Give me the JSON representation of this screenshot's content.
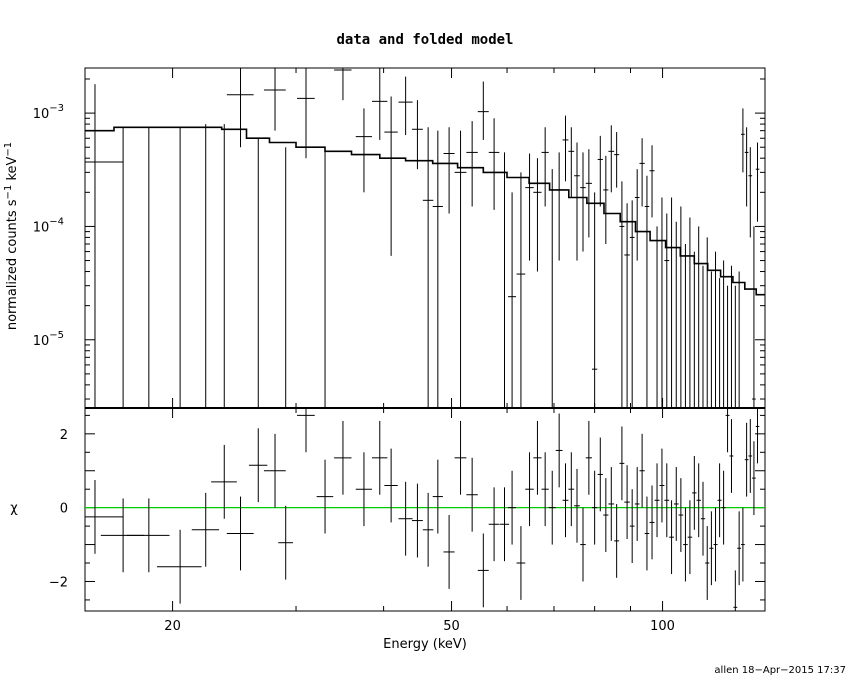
{
  "chart_data": [
    {
      "type": "scatter",
      "panel": "top",
      "title": "data and folded model",
      "xlabel": "",
      "ylabel_parts": [
        "normalized counts s",
        "−1",
        " keV",
        "−1"
      ],
      "xscale": "log",
      "yscale": "log",
      "xlim": [
        15,
        140
      ],
      "ylim": [
        2.5e-06,
        0.0025
      ],
      "yticks": [
        {
          "value": 0.001,
          "base": "10",
          "exp": "−3"
        },
        {
          "value": 0.0001,
          "base": "10",
          "exp": "−4"
        },
        {
          "value": 1e-05,
          "base": "10",
          "exp": "−5"
        }
      ],
      "series": [
        {
          "role": "data",
          "color": "#000000",
          "x": [
            15.5,
            17.0,
            18.5,
            20.5,
            22.3,
            23.7,
            25.0,
            26.5,
            28.0,
            29.0,
            31.0,
            33.0,
            35.0,
            37.5,
            39.5,
            41.0,
            43.0,
            44.7,
            46.3,
            47.8,
            49.6,
            51.5,
            53.5,
            55.5,
            57.5,
            59.5,
            61.0,
            62.8,
            64.6,
            66.3,
            68.0,
            69.6,
            71.2,
            72.7,
            74.1,
            75.5,
            77.0,
            78.5,
            80.0,
            81.5,
            83.0,
            84.5,
            86.0,
            87.5,
            89.0,
            90.5,
            92.0,
            93.5,
            95.0,
            96.6,
            98.2,
            99.8,
            101.4,
            103.0,
            104.6,
            106.2,
            107.8,
            109.4,
            111.0,
            112.6,
            114.2,
            115.8,
            117.4,
            119.0,
            120.6,
            122.2,
            123.8,
            125.4,
            127.0,
            128.6,
            130.2,
            131.8,
            133.4,
            135.0,
            136.6
          ],
          "y": [
            0.00037,
            2.5e-06,
            2.5e-06,
            2.5e-06,
            2.5e-06,
            2.5e-06,
            0.00145,
            2.5e-06,
            0.0016,
            2.5e-06,
            0.00135,
            2.5e-06,
            0.0024,
            0.00062,
            0.00127,
            0.00068,
            0.00125,
            0.00072,
            0.00017,
            0.00015,
            0.00044,
            0.0003,
            0.00045,
            0.00103,
            0.00045,
            2.5e-06,
            2.4e-05,
            3.8e-05,
            0.00022,
            0.0002,
            0.00045,
            2.5e-06,
            0.00021,
            0.00058,
            0.00046,
            0.00028,
            0.00022,
            0.00024,
            5.5e-06,
            0.00039,
            0.00021,
            0.00046,
            0.00043,
            0.0001,
            5.6e-05,
            8e-05,
            0.00018,
            0.00036,
            0.00015,
            0.00031,
            2.5e-06,
            2.5e-06,
            5e-05,
            2.5e-06,
            2.5e-06,
            2.5e-06,
            2.5e-06,
            2.5e-06,
            2.5e-06,
            2.5e-06,
            2.5e-06,
            2.5e-06,
            2.5e-06,
            2.5e-06,
            2.5e-06,
            2.5e-06,
            2.5e-06,
            2.5e-06,
            2.5e-06,
            2.5e-06,
            0.00065,
            0.00045,
            0.00028,
            3e-06,
            0.00032
          ],
          "xerr": [
            1.5,
            1.2,
            1.3,
            1.5,
            1.0,
            1.0,
            1.1,
            0.8,
            1.0,
            0.7,
            0.9,
            0.9,
            1.0,
            1.0,
            1.0,
            0.9,
            1.0,
            0.8,
            0.8,
            0.8,
            0.9,
            1.0,
            1.0,
            1.0,
            1.0,
            0.9,
            0.8,
            0.9,
            0.9,
            0.9,
            0.8,
            0.8,
            0.8,
            0.7,
            0.7,
            0.7,
            0.7,
            0.8,
            0.7,
            0.7,
            0.7,
            0.8,
            0.7,
            0.7,
            0.8,
            0.7,
            0.7,
            0.8,
            0.7,
            0.8,
            0.8,
            0.8,
            0.8,
            0.8,
            0.8,
            0.8,
            0.8,
            0.8,
            0.8,
            0.8,
            0.8,
            0.8,
            0.8,
            0.8,
            0.8,
            0.8,
            0.8,
            0.8,
            0.8,
            0.8,
            0.8,
            0.8,
            0.8,
            0.8,
            0.8
          ],
          "ylo": [
            2.5e-06,
            2.5e-06,
            2.5e-06,
            2.5e-06,
            2.5e-06,
            2.5e-06,
            0.0005,
            2.5e-06,
            0.0007,
            2.5e-06,
            0.0004,
            2.5e-06,
            0.0013,
            0.0002,
            0.00058,
            5.5e-05,
            0.00064,
            0.00032,
            2.5e-06,
            2.5e-06,
            0.00013,
            2.5e-06,
            0.00015,
            0.00058,
            0.00014,
            2.5e-06,
            2.5e-06,
            2.5e-06,
            5e-05,
            4e-05,
            0.00015,
            2.5e-06,
            5e-05,
            0.00025,
            0.00018,
            5e-05,
            6e-05,
            8e-05,
            2.5e-06,
            0.00015,
            7e-05,
            0.0002,
            0.00022,
            2.5e-06,
            2.5e-06,
            2.5e-06,
            5e-05,
            0.00015,
            2.5e-06,
            0.00012,
            2.5e-06,
            2.5e-06,
            2.5e-06,
            2.5e-06,
            2.5e-06,
            2.5e-06,
            2.5e-06,
            2.5e-06,
            2.5e-06,
            2.5e-06,
            2.5e-06,
            2.5e-06,
            2.5e-06,
            2.5e-06,
            2.5e-06,
            2.5e-06,
            2.5e-06,
            2.5e-06,
            2.5e-06,
            2.5e-06,
            0.0003,
            0.00015,
            8e-05,
            2.5e-06,
            0.00011
          ],
          "yhi": [
            0.0018,
            0.00075,
            0.00075,
            0.00075,
            0.0008,
            0.0008,
            0.0025,
            0.0006,
            0.0025,
            0.0005,
            0.0025,
            0.0005,
            0.0025,
            0.0011,
            0.0025,
            0.0014,
            0.0021,
            0.0013,
            0.00075,
            0.0007,
            0.00075,
            0.0007,
            0.00085,
            0.0019,
            0.0009,
            0.00045,
            0.0002,
            0.0003,
            0.00044,
            0.0004,
            0.00075,
            0.00032,
            0.00045,
            0.00095,
            0.00075,
            0.00055,
            0.00045,
            0.00048,
            0.0002,
            0.00063,
            0.00042,
            0.00078,
            0.00068,
            0.00025,
            0.00016,
            0.00017,
            0.00032,
            0.0006,
            0.00028,
            0.00052,
            0.0001,
            0.00018,
            0.00013,
            0.00018,
            0.00011,
            0.00015,
            7e-05,
            0.00012,
            6e-05,
            0.0001,
            4.5e-05,
            8e-05,
            4e-05,
            6e-05,
            3.5e-05,
            5e-05,
            3e-05,
            4.5e-05,
            3e-05,
            4e-05,
            0.0011,
            0.00075,
            0.0005,
            0.0001,
            0.00055
          ]
        },
        {
          "role": "model",
          "color": "#000000",
          "x": [
            15,
            16.5,
            18.5,
            21,
            23.5,
            25.5,
            27.5,
            30,
            33,
            36,
            39.5,
            43,
            47,
            51,
            55.5,
            60,
            64.5,
            69,
            73.5,
            78,
            82.5,
            87,
            91.5,
            96,
            101,
            106,
            111,
            116,
            121,
            126,
            131,
            136,
            140
          ],
          "y": [
            0.0007,
            0.00075,
            0.00075,
            0.00075,
            0.00072,
            0.0006,
            0.00055,
            0.0005,
            0.00046,
            0.00043,
            0.0004,
            0.00038,
            0.00036,
            0.00033,
            0.0003,
            0.00027,
            0.00024,
            0.00021,
            0.00018,
            0.00016,
            0.00013,
            0.00011,
            9e-05,
            7.5e-05,
            6.5e-05,
            5.5e-05,
            4.7e-05,
            4.1e-05,
            3.6e-05,
            3.2e-05,
            2.8e-05,
            2.5e-05,
            2.4e-05
          ]
        }
      ]
    },
    {
      "type": "scatter",
      "panel": "bottom",
      "xlabel": "Energy (keV)",
      "ylabel": "χ",
      "xscale": "log",
      "xlim": [
        15,
        140
      ],
      "ylim": [
        -2.8,
        2.7
      ],
      "xticks": [
        {
          "value": 20,
          "label": "20"
        },
        {
          "value": 50,
          "label": "50"
        },
        {
          "value": 100,
          "label": "100"
        }
      ],
      "yticks": [
        {
          "value": 2,
          "label": "2"
        },
        {
          "value": 0,
          "label": "0"
        },
        {
          "value": -2,
          "label": "−2"
        }
      ],
      "reference_line": {
        "y": 0,
        "color": "#00cc00"
      },
      "series": [
        {
          "role": "residuals",
          "color": "#000000",
          "x": [
            15.5,
            17.0,
            18.5,
            20.5,
            22.3,
            23.7,
            25.0,
            26.5,
            28.0,
            29.0,
            31.0,
            33.0,
            35.0,
            37.5,
            39.5,
            41.0,
            43.0,
            44.7,
            46.3,
            47.8,
            49.6,
            51.5,
            53.5,
            55.5,
            57.5,
            59.5,
            61.0,
            62.8,
            64.6,
            66.3,
            68.0,
            69.6,
            71.2,
            72.7,
            74.1,
            75.5,
            77.0,
            78.5,
            80.0,
            81.5,
            83.0,
            84.5,
            86.0,
            87.5,
            89.0,
            90.5,
            92.0,
            93.5,
            95.0,
            96.6,
            98.2,
            99.8,
            101.4,
            103.0,
            104.6,
            106.2,
            107.8,
            109.4,
            111.0,
            112.6,
            114.2,
            115.8,
            117.4,
            119.0,
            120.6,
            122.2,
            123.8,
            125.4,
            127.0,
            128.6,
            130.2,
            131.8,
            133.4,
            135.0,
            136.6
          ],
          "y": [
            -0.25,
            -0.75,
            -0.75,
            -1.6,
            -0.6,
            0.7,
            -0.7,
            1.15,
            1.0,
            -0.95,
            2.5,
            0.3,
            1.35,
            0.5,
            1.35,
            0.6,
            -0.3,
            -0.35,
            -0.6,
            0.3,
            -1.2,
            1.35,
            0.35,
            -1.7,
            -0.45,
            -0.45,
            0.0,
            -1.5,
            0.5,
            1.35,
            0.5,
            0.0,
            1.55,
            0.2,
            0.5,
            0.05,
            -1.0,
            1.35,
            0.0,
            0.9,
            -0.2,
            0.1,
            -0.9,
            1.2,
            0.15,
            -0.5,
            0.1,
            1.0,
            -0.7,
            -0.4,
            0.2,
            0.6,
            0.2,
            -0.8,
            0.1,
            -0.2,
            -1.0,
            -0.8,
            0.4,
            0.2,
            -0.3,
            -1.5,
            -1.1,
            -1.0,
            0.2,
            0.0,
            2.5,
            1.4,
            -2.7,
            -1.1,
            -1.0,
            1.3,
            1.4,
            0.8,
            2.2
          ],
          "xerr": [
            1.5,
            1.2,
            1.3,
            1.5,
            1.0,
            1.0,
            1.1,
            0.8,
            1.0,
            0.7,
            0.9,
            0.9,
            1.0,
            1.0,
            1.0,
            0.9,
            1.0,
            0.8,
            0.8,
            0.8,
            0.9,
            1.0,
            1.0,
            1.0,
            1.0,
            0.9,
            0.8,
            0.9,
            0.9,
            0.9,
            0.8,
            0.8,
            0.8,
            0.7,
            0.7,
            0.7,
            0.7,
            0.8,
            0.7,
            0.7,
            0.7,
            0.8,
            0.7,
            0.7,
            0.8,
            0.7,
            0.7,
            0.8,
            0.7,
            0.8,
            0.8,
            0.8,
            0.8,
            0.8,
            0.8,
            0.8,
            0.8,
            0.8,
            0.8,
            0.8,
            0.8,
            0.8,
            0.8,
            0.8,
            0.8,
            0.8,
            0.8,
            0.8,
            0.8,
            0.8,
            0.8,
            0.8,
            0.8,
            0.8,
            0.8
          ],
          "yerr": [
            1.0,
            1.0,
            1.0,
            1.0,
            1.0,
            1.0,
            1.0,
            1.0,
            1.0,
            1.0,
            1.0,
            1.0,
            1.0,
            1.0,
            1.0,
            1.0,
            1.0,
            1.0,
            1.0,
            1.0,
            1.0,
            1.0,
            1.0,
            1.0,
            1.0,
            1.0,
            1.0,
            1.0,
            1.0,
            1.0,
            1.0,
            1.0,
            1.0,
            1.0,
            1.0,
            1.0,
            1.0,
            1.0,
            1.0,
            1.0,
            1.0,
            1.0,
            1.0,
            1.0,
            1.0,
            1.0,
            1.0,
            1.0,
            1.0,
            1.0,
            1.0,
            1.0,
            1.0,
            1.0,
            1.0,
            1.0,
            1.0,
            1.0,
            1.0,
            1.0,
            1.0,
            1.0,
            1.0,
            1.0,
            1.0,
            1.0,
            1.0,
            1.0,
            1.0,
            1.0,
            1.0,
            1.0,
            1.0,
            1.0,
            1.0
          ]
        }
      ]
    }
  ],
  "footer": "allen 18−Apr−2015 17:37"
}
